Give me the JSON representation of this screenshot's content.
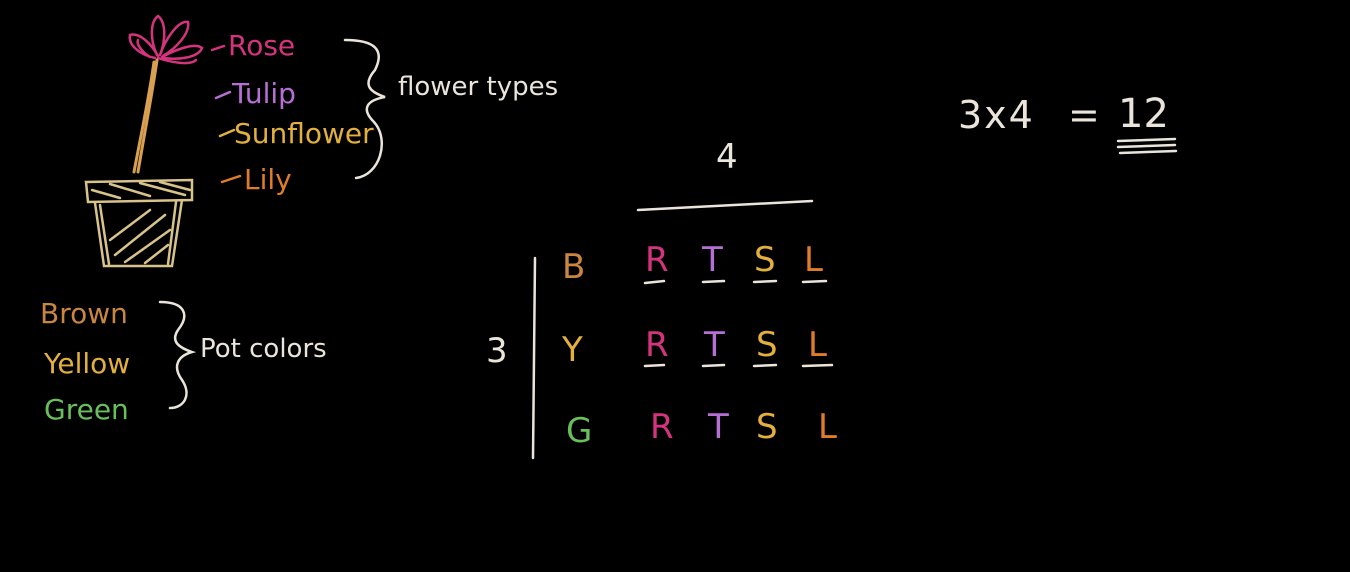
{
  "flower_types": {
    "items": [
      {
        "label": "Rose",
        "color": "#d4337e"
      },
      {
        "label": "Tulip",
        "color": "#b66fd4"
      },
      {
        "label": "Sunflower",
        "color": "#e3b03e"
      },
      {
        "label": "Lily",
        "color": "#e07c27"
      }
    ],
    "group_label": "flower types"
  },
  "pot_colors": {
    "items": [
      {
        "label": "Brown",
        "color": "#c98542"
      },
      {
        "label": "Yellow",
        "color": "#e3b03e"
      },
      {
        "label": "Green",
        "color": "#69bf5a"
      }
    ],
    "group_label": "Pot colors"
  },
  "grid": {
    "column_count_label": "4",
    "row_count_label": "3",
    "rows": [
      {
        "label": "B",
        "color": "#c98542",
        "cells": [
          "R",
          "T",
          "S",
          "L"
        ]
      },
      {
        "label": "Y",
        "color": "#e3b03e",
        "cells": [
          "R",
          "T",
          "S",
          "L"
        ]
      },
      {
        "label": "G",
        "color": "#69bf5a",
        "cells": [
          "R",
          "T",
          "S",
          "L"
        ]
      }
    ],
    "cell_colors": [
      "#d4337e",
      "#b66fd4",
      "#e3b03e",
      "#e07c27"
    ]
  },
  "equation": {
    "left": "3x4",
    "equals": "=",
    "result": "12"
  },
  "palette": {
    "chalk": "#eae4da",
    "pot": "#d8c38a",
    "stem": "#d9a052",
    "petal": "#d4337e"
  }
}
